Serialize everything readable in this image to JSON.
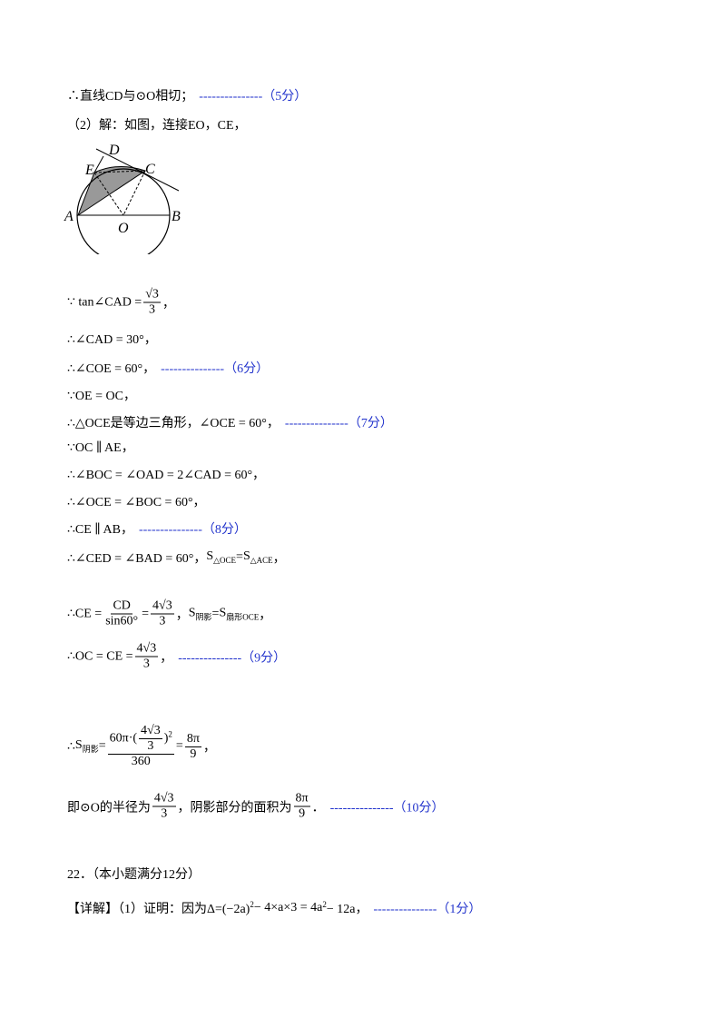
{
  "figure": {
    "labels": [
      "D",
      "E",
      "C",
      "A",
      "O",
      "B"
    ]
  },
  "lines": [
    {
      "segs": [
        "∴直线CD与⊙O相切；"
      ],
      "score": "---------------（5分）"
    },
    {
      "segs": [
        "（2）解：如图，连接EO，CE，"
      ]
    },
    {
      "segs": [
        "∵ tan∠CAD = ",
        {
          "num": "√3",
          "den": "3"
        },
        "，"
      ]
    },
    {
      "segs": [
        "∴∠CAD = 30°，"
      ]
    },
    {
      "segs": [
        "∴∠COE = 60°，"
      ],
      "score": "---------------（6分）"
    },
    {
      "segs": [
        "∵OE = OC，"
      ]
    },
    {
      "segs": [
        "∴△OCE是等边三角形，∠OCE = 60°，"
      ],
      "score": "---------------（7分）"
    },
    {
      "segs": [
        "∵OC ∥ AE，"
      ]
    },
    {
      "segs": [
        "∴∠BOC = ∠OAD = 2∠CAD = 60°，"
      ]
    },
    {
      "segs": [
        "∴∠OCE = ∠BOC = 60°，"
      ]
    },
    {
      "segs": [
        "∴CE ∥ AB，"
      ],
      "score": "---------------（8分）"
    },
    {
      "segs": [
        "∴∠CED = ∠BAD = 60°，  ",
        {
          "base": "S",
          "sub": "△OCE"
        },
        " = ",
        {
          "base": "S",
          "sub": "△ACE"
        },
        "，"
      ]
    },
    {
      "segs": [
        "∴CE = ",
        {
          "num": "CD",
          "den": "sin60°"
        },
        " = ",
        {
          "num": "4√3",
          "den": "3"
        },
        "，  ",
        {
          "base": "S",
          "sub": "阴影"
        },
        " = ",
        {
          "base": "S",
          "sub": "扇形OCE"
        },
        "，"
      ]
    },
    {
      "segs": [
        "∴OC = CE = ",
        {
          "num": "4√3",
          "den": "3"
        },
        "，"
      ],
      "score": "---------------（9分）"
    },
    {
      "segs": [
        "∴",
        {
          "base": "S",
          "sub": "阴影"
        },
        " = ",
        {
          "num": [
            "60π·(",
            {
              "num": "4√3",
              "den": "3"
            },
            ")",
            {
              "base": "",
              "sup": "2"
            }
          ],
          "den": "360"
        },
        " = ",
        {
          "num": "8π",
          "den": "9"
        },
        "，"
      ]
    },
    {
      "segs": [
        "即⊙O的半径为",
        {
          "num": "4√3",
          "den": "3"
        },
        "，阴影部分的面积为",
        {
          "num": "8π",
          "den": "9"
        },
        "．"
      ],
      "score": "---------------（10分）"
    },
    {
      "segs": [
        "22．（本小题满分12分）"
      ]
    },
    {
      "segs": [
        "【详解】（1）证明：因为Δ=(−2a)",
        {
          "base": "",
          "sup": "2"
        },
        " − 4×a×3 = 4a",
        {
          "base": "",
          "sup": "2"
        },
        " − 12a，"
      ],
      "score": "---------------（1分）"
    }
  ]
}
